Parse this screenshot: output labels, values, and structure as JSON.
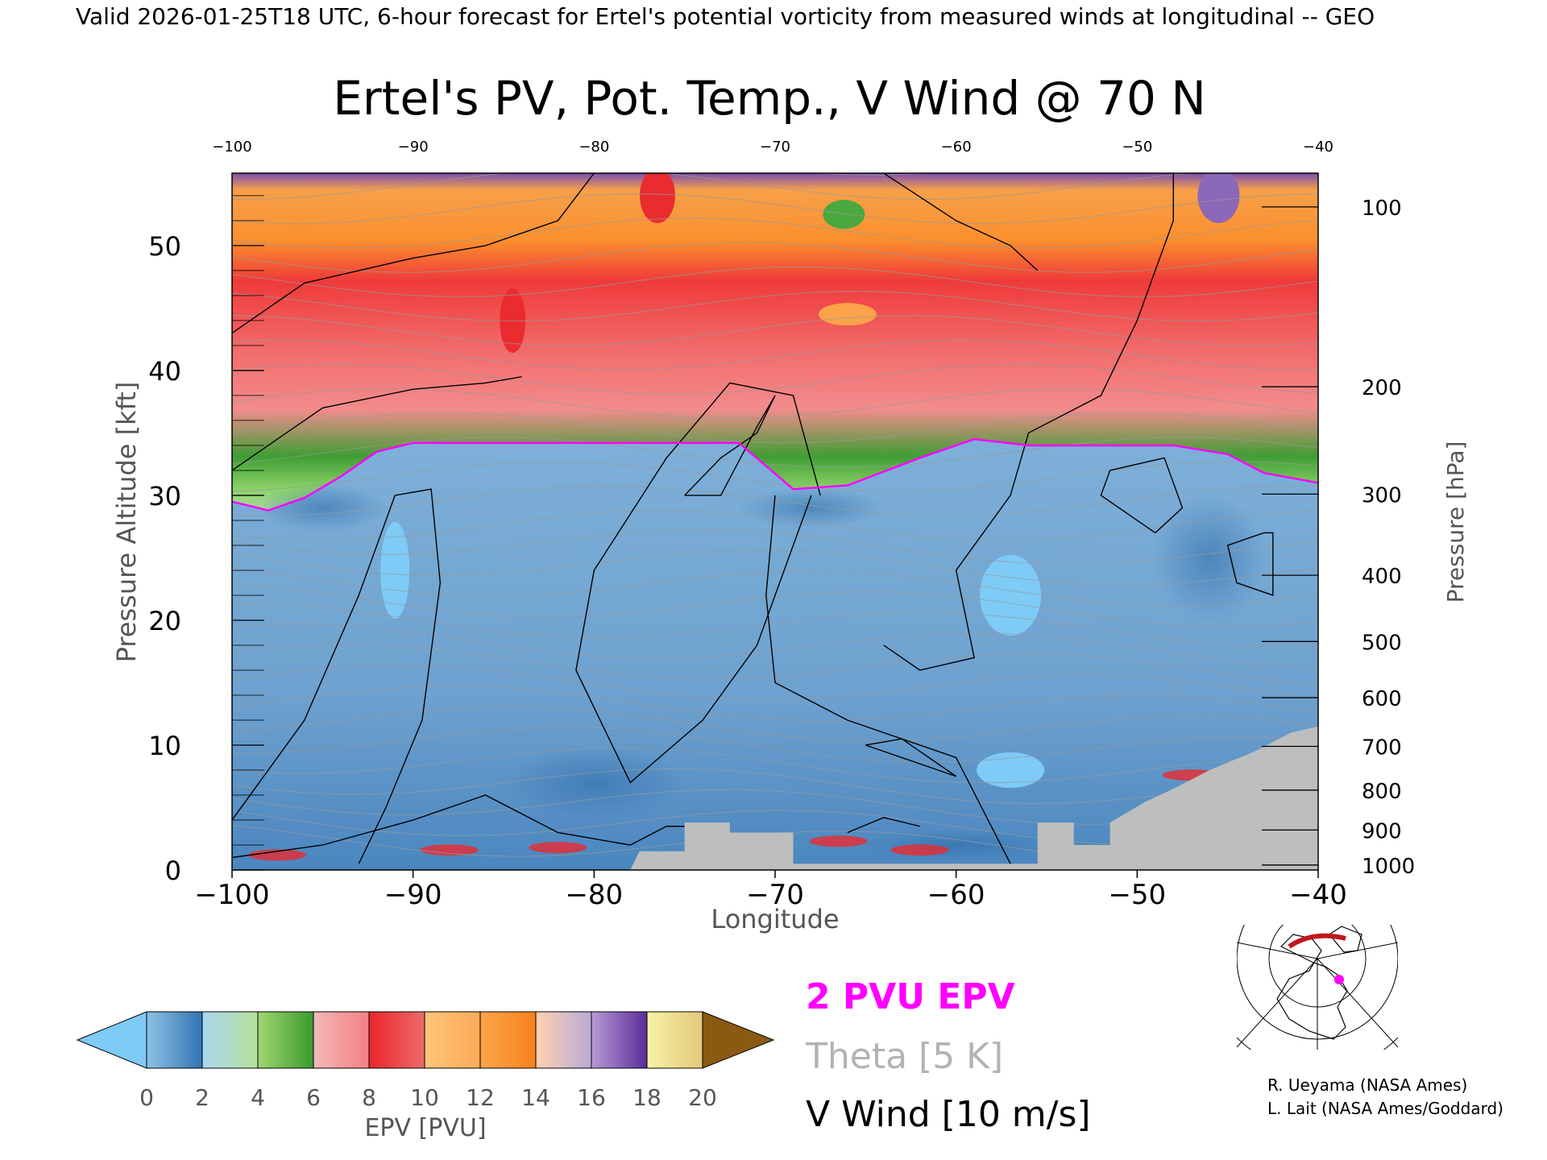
{
  "header": {
    "valid_line": "Valid 2026-01-25T18 UTC, 6-hour forecast for Ertel's potential vorticity from measured winds at longitudinal -- GEO"
  },
  "chart_data": {
    "type": "heatmap",
    "title": "Ertel's PV, Pot. Temp., V Wind @ 70 N",
    "xlabel": "Longitude",
    "ylabel": "Pressure Altitude [kft]",
    "y2label": "Pressure [hPa]",
    "xlim": [
      -100,
      -40
    ],
    "ylim": [
      0,
      55.8
    ],
    "x_ticks": [
      -100,
      -90,
      -80,
      -70,
      -60,
      -50,
      -40
    ],
    "top_x_ticks": [
      -100,
      -90,
      -80,
      -70,
      -60,
      -50,
      -40
    ],
    "y_ticks": [
      0,
      10,
      20,
      30,
      40,
      50
    ],
    "pressure_ticks": [
      {
        "hpa": 100,
        "kft": 53.1
      },
      {
        "hpa": 200,
        "kft": 38.7
      },
      {
        "hpa": 300,
        "kft": 30.1
      },
      {
        "hpa": 400,
        "kft": 23.6
      },
      {
        "hpa": 500,
        "kft": 18.3
      },
      {
        "hpa": 600,
        "kft": 13.8
      },
      {
        "hpa": 700,
        "kft": 9.9
      },
      {
        "hpa": 800,
        "kft": 6.4
      },
      {
        "hpa": 900,
        "kft": 3.2
      },
      {
        "hpa": 1000,
        "kft": 0.4
      }
    ],
    "dynamic_tropopause_2pvu": [
      [
        -100,
        29.5
      ],
      [
        -98,
        28.8
      ],
      [
        -96,
        29.8
      ],
      [
        -94,
        31.5
      ],
      [
        -92,
        33.5
      ],
      [
        -90,
        34.2
      ],
      [
        -86,
        34.2
      ],
      [
        -80,
        34.2
      ],
      [
        -76,
        34.2
      ],
      [
        -72,
        34.2
      ],
      [
        -69,
        30.5
      ],
      [
        -66,
        30.8
      ],
      [
        -62,
        33.0
      ],
      [
        -59,
        34.5
      ],
      [
        -56,
        34.0
      ],
      [
        -52,
        34.0
      ],
      [
        -48,
        34.0
      ],
      [
        -45,
        33.3
      ],
      [
        -43,
        31.8
      ],
      [
        -40,
        31.0
      ]
    ],
    "terrain_kft": [
      [
        -100,
        0
      ],
      [
        -78,
        0
      ],
      [
        -77.5,
        1.5
      ],
      [
        -75,
        1.5
      ],
      [
        -75,
        3.8
      ],
      [
        -72.5,
        3.8
      ],
      [
        -72.5,
        3.0
      ],
      [
        -69,
        3.0
      ],
      [
        -69,
        0.5
      ],
      [
        -55.5,
        0.5
      ],
      [
        -55.5,
        3.8
      ],
      [
        -53.5,
        3.8
      ],
      [
        -53.5,
        2.0
      ],
      [
        -51.5,
        2.0
      ],
      [
        -51.5,
        3.8
      ],
      [
        -49.5,
        5.5
      ],
      [
        -48,
        6.5
      ],
      [
        -46,
        8.0
      ],
      [
        -43.5,
        9.5
      ],
      [
        -41.5,
        11.0
      ],
      [
        -40,
        11.5
      ]
    ],
    "epv_colorbar": {
      "label": "EPV [PVU]",
      "ticks": [
        0,
        2,
        4,
        6,
        8,
        10,
        12,
        14,
        16,
        18,
        20
      ],
      "under_color": "#7ecbf6",
      "over_color": "#8a5a12",
      "bins": [
        [
          "#8ec2e6",
          "#2f74b3"
        ],
        [
          "#a9d8f0",
          "#b5e29a"
        ],
        [
          "#9fd870",
          "#3a9a2f"
        ],
        [
          "#f5b8b8",
          "#f37f85"
        ],
        [
          "#e8262c",
          "#ee6a6a"
        ],
        [
          "#fdc57a",
          "#fcaa55"
        ],
        [
          "#fca54a",
          "#f7811a"
        ],
        [
          "#ffd2b0",
          "#b9a9d8"
        ],
        [
          "#b89bd6",
          "#5b2d9a"
        ],
        [
          "#f6f3a6",
          "#e5c87a"
        ]
      ]
    },
    "legend": [
      {
        "label": "2 PVU EPV",
        "color": "#ff00ff"
      },
      {
        "label": "Theta [5 K]",
        "color": "#b3b3b3"
      },
      {
        "label": "V Wind [10 m/s]",
        "color": "#000000"
      }
    ]
  },
  "credits": {
    "line1": "R. Ueyama (NASA Ames)",
    "line2": "L. Lait (NASA Ames/Goddard)"
  },
  "colors": {
    "trop_blue": "#6fa2cf",
    "terrain": "#bebebe",
    "strat_green": "#49a83e",
    "strat_red": "#ea2b30",
    "strat_orange": "#fba24a",
    "strat_purple": "#8b68b8"
  },
  "icons": {
    "inset_map": "north-polar-map-icon"
  }
}
